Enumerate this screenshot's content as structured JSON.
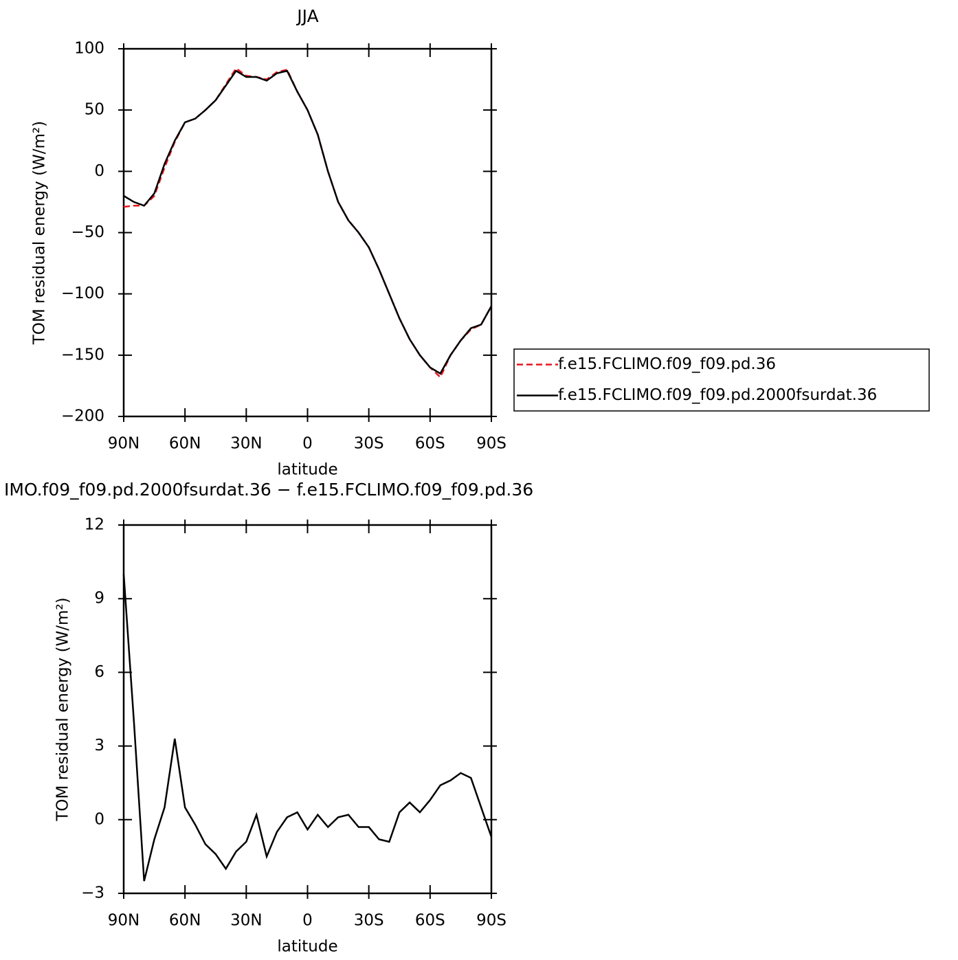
{
  "chart_data": [
    {
      "type": "line",
      "title": "JJA",
      "xlabel": "latitude",
      "ylabel": "TOM residual energy (W/m²)",
      "x": [
        90,
        85,
        80,
        75,
        70,
        65,
        60,
        55,
        50,
        45,
        40,
        35,
        30,
        25,
        20,
        15,
        10,
        5,
        0,
        -5,
        -10,
        -15,
        -20,
        -25,
        -30,
        -35,
        -40,
        -45,
        -50,
        -55,
        -60,
        -65,
        -70,
        -75,
        -80,
        -85,
        -90
      ],
      "xlim": [
        90,
        -90
      ],
      "xticks": [
        {
          "value": 90,
          "label": "90N"
        },
        {
          "value": 60,
          "label": "60N"
        },
        {
          "value": 30,
          "label": "30N"
        },
        0,
        {
          "value": -30,
          "label": "30S"
        },
        {
          "value": -60,
          "label": "60S"
        },
        {
          "value": -90,
          "label": "90S"
        }
      ],
      "ylim": [
        -200,
        100
      ],
      "yticks": [
        100,
        50,
        0,
        {
          "value": -50,
          "label": "−50"
        },
        {
          "value": -100,
          "label": "−100"
        },
        {
          "value": -150,
          "label": "−150"
        },
        {
          "value": -200,
          "label": "−200"
        }
      ],
      "legend": "right",
      "series": [
        {
          "name": "f.e15.FCLIMO.f09_f09.pd.36",
          "color": "#e8141c",
          "style": "dashed",
          "values": [
            -29,
            -28,
            -28,
            -20,
            3,
            24,
            40,
            43,
            50,
            58,
            71,
            84,
            78,
            77,
            75,
            81,
            83,
            65,
            50,
            30,
            0,
            -25,
            -40,
            -50,
            -62,
            -80,
            -100,
            -120,
            -137,
            -150,
            -160,
            -168,
            -150,
            -138,
            -129,
            -125,
            -110
          ]
        },
        {
          "name": "f.e15.FCLIMO.f09_f09.pd.2000fsurdat.36",
          "color": "#000000",
          "style": "solid",
          "values": [
            -20,
            -25,
            -28,
            -18,
            6,
            25,
            40,
            43,
            50,
            58,
            70,
            82,
            77,
            77,
            74,
            80,
            82,
            65,
            50,
            30,
            0,
            -25,
            -40,
            -50,
            -62,
            -80,
            -100,
            -120,
            -137,
            -150,
            -160,
            -165,
            -150,
            -138,
            -128,
            -125,
            -110
          ]
        }
      ]
    },
    {
      "type": "line",
      "title": "IMO.f09_f09.pd.2000fsurdat.36 − f.e15.FCLIMO.f09_f09.pd.36",
      "xlabel": "latitude",
      "ylabel": "TOM residual energy (W/m²)",
      "x": [
        90,
        85,
        80,
        75,
        70,
        65,
        60,
        55,
        50,
        45,
        40,
        35,
        30,
        25,
        20,
        15,
        10,
        5,
        0,
        -5,
        -10,
        -15,
        -20,
        -25,
        -30,
        -35,
        -40,
        -45,
        -50,
        -55,
        -60,
        -65,
        -70,
        -75,
        -80,
        -85,
        -90
      ],
      "xlim": [
        90,
        -90
      ],
      "xticks": [
        {
          "value": 90,
          "label": "90N"
        },
        {
          "value": 60,
          "label": "60N"
        },
        {
          "value": 30,
          "label": "30N"
        },
        0,
        {
          "value": -30,
          "label": "30S"
        },
        {
          "value": -60,
          "label": "60S"
        },
        {
          "value": -90,
          "label": "90S"
        }
      ],
      "ylim": [
        -3,
        12
      ],
      "yticks": [
        12,
        9,
        6,
        3,
        0,
        {
          "value": -3,
          "label": "−3"
        }
      ],
      "series": [
        {
          "color": "#000000",
          "style": "solid",
          "values": [
            10,
            4,
            -2.5,
            -0.8,
            0.5,
            3.3,
            0.5,
            -0.2,
            -1.0,
            -1.4,
            -2.0,
            -1.3,
            -0.9,
            0.2,
            -1.5,
            -0.5,
            0.1,
            0.3,
            -0.4,
            0.2,
            -0.3,
            0.1,
            0.2,
            -0.3,
            -0.3,
            -0.8,
            -0.9,
            0.3,
            0.7,
            0.3,
            0.8,
            1.4,
            1.6,
            1.9,
            1.7,
            0.5,
            -0.7
          ]
        }
      ]
    }
  ]
}
